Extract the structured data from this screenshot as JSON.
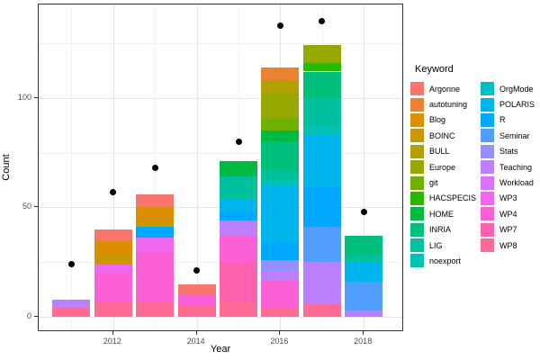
{
  "legend": {
    "title": "Keyword",
    "columns": [
      [
        "Argonne",
        "autotuning",
        "Blog",
        "BOINC",
        "BULL",
        "Europe",
        "git",
        "HACSPECIS",
        "HOME",
        "INRIA",
        "LIG",
        "noexport"
      ],
      [
        "OrgMode",
        "POLARIS",
        "R",
        "Seminar",
        "Stats",
        "Teaching",
        "Workload",
        "WP3",
        "WP4",
        "WP7",
        "WP8"
      ]
    ]
  },
  "palette": {
    "Argonne": "#F8766D",
    "autotuning": "#EA8331",
    "Blog": "#DB8E00",
    "BOINC": "#C99800",
    "BULL": "#B2A100",
    "Europe": "#97A900",
    "git": "#6FB000",
    "HACSPECIS": "#2BB600",
    "HOME": "#00BA42",
    "INRIA": "#00BE7C",
    "LIG": "#00C09E",
    "noexport": "#00C1B2",
    "OrgMode": "#00BFC4",
    "POLARIS": "#00B5EC",
    "R": "#00A7FF",
    "Seminar": "#529EFF",
    "Stats": "#9590FF",
    "Teaching": "#BC80FF",
    "Workload": "#DB72FB",
    "WP3": "#EF67EC",
    "WP4": "#FB61D7",
    "WP7": "#FF62AD",
    "WP8": "#FF6B94"
  },
  "chart_data": {
    "type": "bar",
    "stacked": true,
    "title": "",
    "xlabel": "Year",
    "ylabel": "Count",
    "x_tick_years": [
      2012,
      2014,
      2016,
      2018
    ],
    "y_ticks": [
      0,
      50,
      100
    ],
    "y_minor_ticks": [
      25,
      75,
      125
    ],
    "years": [
      2011,
      2012,
      2013,
      2014,
      2015,
      2016,
      2017,
      2018
    ],
    "ylim": [
      0,
      140
    ],
    "grid": true,
    "legend_position": "right",
    "bars": [
      {
        "year": 2011,
        "total": 8,
        "segments": [
          {
            "keyword": "WP8",
            "value": 4
          },
          {
            "keyword": "Teaching",
            "value": 4
          }
        ]
      },
      {
        "year": 2012,
        "total": 40,
        "segments": [
          {
            "keyword": "WP8",
            "value": 7
          },
          {
            "keyword": "WP4",
            "value": 13
          },
          {
            "keyword": "WP3",
            "value": 4
          },
          {
            "keyword": "BOINC",
            "value": 4
          },
          {
            "keyword": "Blog",
            "value": 7
          },
          {
            "keyword": "Argonne",
            "value": 5
          }
        ]
      },
      {
        "year": 2013,
        "total": 56,
        "segments": [
          {
            "keyword": "WP8",
            "value": 7
          },
          {
            "keyword": "WP4",
            "value": 22
          },
          {
            "keyword": "WP3",
            "value": 7
          },
          {
            "keyword": "R",
            "value": 5
          },
          {
            "keyword": "BOINC",
            "value": 3
          },
          {
            "keyword": "Blog",
            "value": 6
          },
          {
            "keyword": "Argonne",
            "value": 6
          }
        ]
      },
      {
        "year": 2014,
        "total": 15,
        "segments": [
          {
            "keyword": "WP8",
            "value": 5
          },
          {
            "keyword": "WP4",
            "value": 5
          },
          {
            "keyword": "Argonne",
            "value": 5
          }
        ]
      },
      {
        "year": 2015,
        "total": 71,
        "segments": [
          {
            "keyword": "WP8",
            "value": 7
          },
          {
            "keyword": "WP7",
            "value": 18
          },
          {
            "keyword": "WP4",
            "value": 12
          },
          {
            "keyword": "Teaching",
            "value": 7
          },
          {
            "keyword": "R",
            "value": 4
          },
          {
            "keyword": "POLARIS",
            "value": 6
          },
          {
            "keyword": "LIG",
            "value": 10
          },
          {
            "keyword": "HOME",
            "value": 7
          }
        ]
      },
      {
        "year": 2016,
        "total": 114,
        "segments": [
          {
            "keyword": "WP8",
            "value": 4
          },
          {
            "keyword": "WP4",
            "value": 13
          },
          {
            "keyword": "Teaching",
            "value": 4
          },
          {
            "keyword": "Stats",
            "value": 5
          },
          {
            "keyword": "R",
            "value": 8
          },
          {
            "keyword": "POLARIS",
            "value": 25
          },
          {
            "keyword": "OrgMode",
            "value": 3
          },
          {
            "keyword": "LIG",
            "value": 5
          },
          {
            "keyword": "INRIA",
            "value": 13
          },
          {
            "keyword": "HOME",
            "value": 5
          },
          {
            "keyword": "git",
            "value": 6
          },
          {
            "keyword": "Europe",
            "value": 11
          },
          {
            "keyword": "BULL",
            "value": 6
          },
          {
            "keyword": "autotuning",
            "value": 6
          }
        ]
      },
      {
        "year": 2017,
        "total": 124,
        "segments": [
          {
            "keyword": "WP8",
            "value": 6
          },
          {
            "keyword": "Teaching",
            "value": 19
          },
          {
            "keyword": "Seminar",
            "value": 16
          },
          {
            "keyword": "R",
            "value": 18
          },
          {
            "keyword": "POLARIS",
            "value": 24
          },
          {
            "keyword": "noexport",
            "value": 4
          },
          {
            "keyword": "LIG",
            "value": 13
          },
          {
            "keyword": "INRIA",
            "value": 12
          },
          {
            "keyword": "HACSPECIS",
            "value": 4
          },
          {
            "keyword": "Europe",
            "value": 8
          }
        ]
      },
      {
        "year": 2018,
        "total": 37,
        "segments": [
          {
            "keyword": "Teaching",
            "value": 3
          },
          {
            "keyword": "Seminar",
            "value": 13
          },
          {
            "keyword": "POLARIS",
            "value": 9
          },
          {
            "keyword": "LIG",
            "value": 3
          },
          {
            "keyword": "INRIA",
            "value": 9
          }
        ]
      }
    ],
    "points": [
      {
        "year": 2011,
        "value": 24
      },
      {
        "year": 2012,
        "value": 57
      },
      {
        "year": 2013,
        "value": 68
      },
      {
        "year": 2014,
        "value": 21
      },
      {
        "year": 2015,
        "value": 80
      },
      {
        "year": 2016,
        "value": 133
      },
      {
        "year": 2017,
        "value": 135
      },
      {
        "year": 2018,
        "value": 48
      }
    ],
    "point_color": "#000000"
  }
}
